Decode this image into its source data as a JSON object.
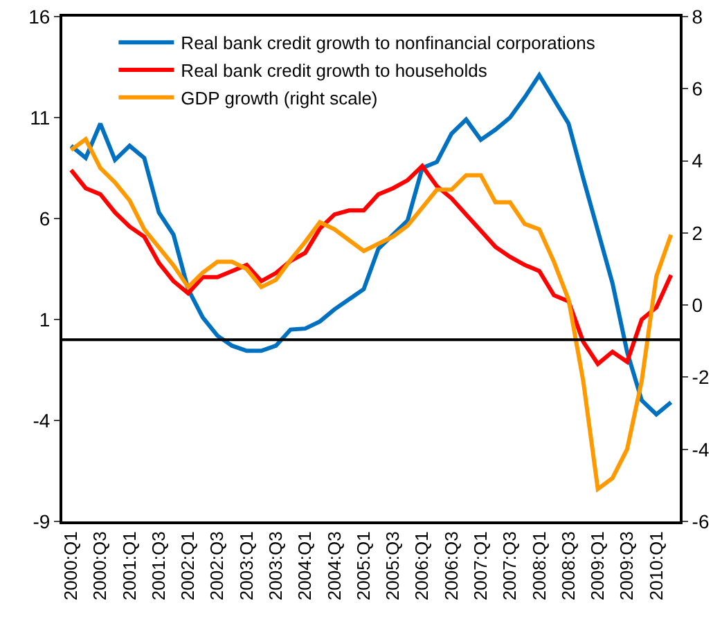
{
  "chart_data": {
    "type": "line",
    "categories": [
      "2000:Q1",
      null,
      "2000:Q3",
      null,
      "2001:Q1",
      null,
      "2001:Q3",
      null,
      "2002:Q1",
      null,
      "2002:Q3",
      null,
      "2003:Q1",
      null,
      "2003:Q3",
      null,
      "2004:Q1",
      null,
      "2004:Q3",
      null,
      "2005:Q1",
      null,
      "2005:Q3",
      null,
      "2006:Q1",
      null,
      "2006:Q3",
      null,
      "2007:Q1",
      null,
      "2007:Q3",
      null,
      "2008:Q1",
      null,
      "2008:Q3",
      null,
      "2009:Q1",
      null,
      "2009:Q3",
      null,
      "2010:Q1",
      null
    ],
    "series": [
      {
        "name": "Real bank credit growth to nonfinancial corporations",
        "color": "#0070c0",
        "values": [
          9.6,
          9.0,
          10.7,
          8.9,
          9.6,
          9.0,
          6.3,
          5.2,
          2.5,
          1.1,
          0.2,
          -0.3,
          -0.55,
          -0.55,
          -0.3,
          0.5,
          0.55,
          0.9,
          1.5,
          2.0,
          2.5,
          4.5,
          5.2,
          5.9,
          8.5,
          8.8,
          10.2,
          10.9,
          9.9,
          10.4,
          11.0,
          12.0,
          13.1,
          11.9,
          10.7,
          8.0,
          5.4,
          2.8,
          -0.6,
          -3.0,
          -3.7,
          -3.1
        ]
      },
      {
        "name": "Real bank credit growth to households",
        "color": "#ff0000",
        "values": [
          8.4,
          7.5,
          7.2,
          6.3,
          5.6,
          5.1,
          3.8,
          2.9,
          2.3,
          3.1,
          3.1,
          3.4,
          3.7,
          2.9,
          3.3,
          3.9,
          4.3,
          5.5,
          6.2,
          6.4,
          6.4,
          7.2,
          7.5,
          7.9,
          8.6,
          7.6,
          7.0,
          6.2,
          5.4,
          4.6,
          4.1,
          3.7,
          3.4,
          2.2,
          1.9,
          -0.1,
          -1.2,
          -0.6,
          -1.1,
          1.0,
          1.6,
          3.2
        ]
      },
      {
        "name": "GDP growth (right scale)",
        "color": "#ff9900",
        "axis": "y2",
        "values": [
          4.3,
          4.6,
          3.8,
          3.4,
          2.9,
          2.1,
          1.6,
          1.1,
          0.5,
          0.9,
          1.2,
          1.2,
          1.0,
          0.5,
          0.7,
          1.25,
          1.75,
          2.3,
          2.1,
          1.8,
          1.5,
          1.7,
          1.9,
          2.2,
          2.7,
          3.2,
          3.2,
          3.6,
          3.6,
          2.85,
          2.85,
          2.25,
          2.1,
          1.2,
          0.15,
          -2.1,
          -5.1,
          -4.8,
          -4.0,
          -2.1,
          0.8,
          1.95
        ]
      }
    ],
    "ylim": [
      -9,
      16
    ],
    "yticks": [
      -9,
      -4,
      1,
      6,
      11,
      16
    ],
    "y2lim": [
      -6,
      8
    ],
    "y2ticks": [
      -6,
      -4,
      -2,
      0,
      2,
      4,
      6,
      8
    ],
    "ref_lines": [
      {
        "axis": "y",
        "value": 0,
        "color": "#000000"
      }
    ],
    "grid": false,
    "legend": "top left",
    "marker": "none",
    "line_style": "solid"
  }
}
